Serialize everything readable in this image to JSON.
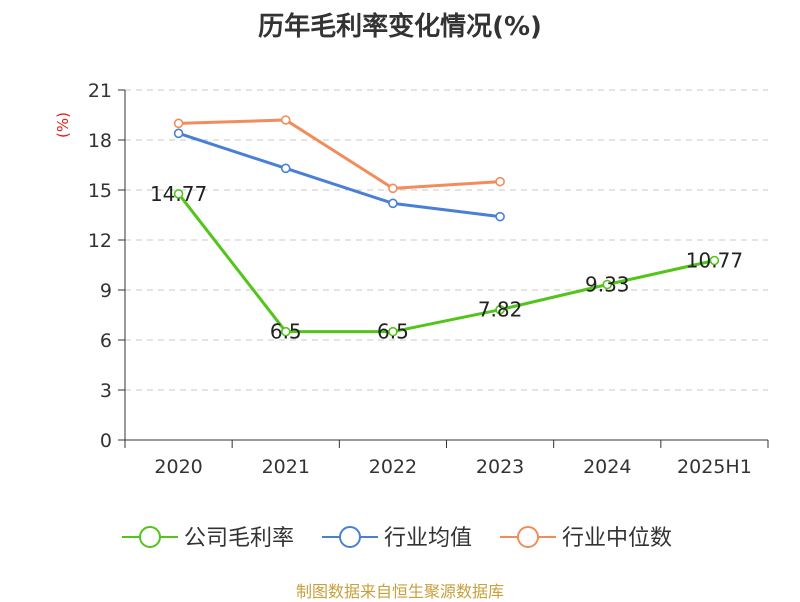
{
  "chart_data": {
    "type": "line",
    "title": "历年毛利率变化情况(%)",
    "ylabel": "(%)",
    "categories": [
      "2020",
      "2021",
      "2022",
      "2023",
      "2024",
      "2025H1"
    ],
    "ylim": [
      0,
      21
    ],
    "yticks": [
      0,
      3,
      6,
      9,
      12,
      15,
      18,
      21
    ],
    "grid": true,
    "legend_position": "bottom",
    "series": [
      {
        "name": "公司毛利率",
        "color": "#52c41a",
        "values": [
          14.77,
          6.5,
          6.5,
          7.82,
          9.33,
          10.77
        ],
        "labels": [
          "14.77",
          "6.5",
          "6.5",
          "7.82",
          "9.33",
          "10.77"
        ]
      },
      {
        "name": "行业均值",
        "color": "#4a7fd6",
        "values": [
          18.4,
          16.3,
          14.2,
          13.4,
          null,
          null
        ]
      },
      {
        "name": "行业中位数",
        "color": "#f28c5a",
        "values": [
          19.0,
          19.2,
          15.1,
          15.5,
          null,
          null
        ]
      }
    ]
  },
  "source": "制图数据来自恒生聚源数据库"
}
